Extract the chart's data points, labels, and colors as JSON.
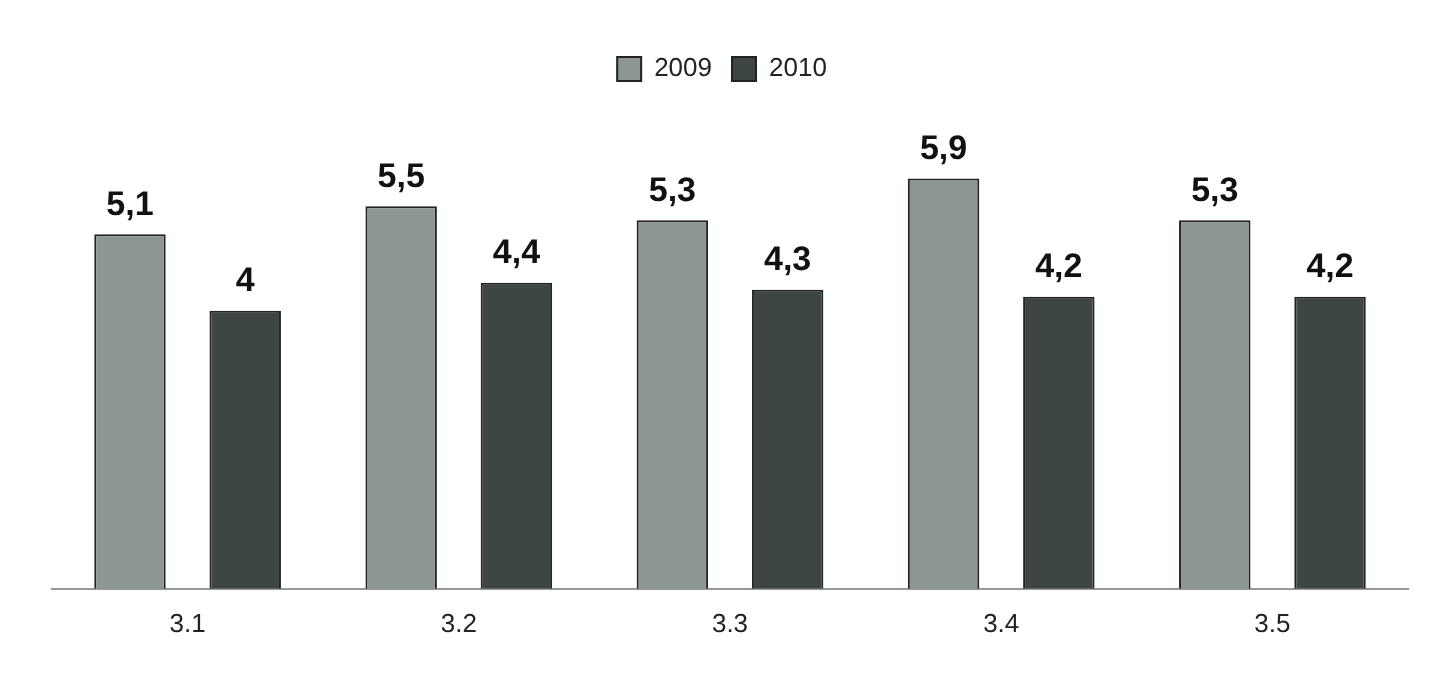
{
  "chart_data": {
    "type": "bar",
    "categories": [
      "3.1",
      "3.2",
      "3.3",
      "3.4",
      "3.5"
    ],
    "series": [
      {
        "name": "2009",
        "color": "#8c9692",
        "values": [
          5.1,
          5.5,
          5.3,
          5.9,
          5.3
        ],
        "value_labels": [
          "5,1",
          "5,5",
          "5,3",
          "5,9",
          "5,3"
        ]
      },
      {
        "name": "2010",
        "color": "#3e4644",
        "values": [
          4,
          4.4,
          4.3,
          4.2,
          4.2
        ],
        "value_labels": [
          "4",
          "4,4",
          "4,3",
          "4,2",
          "4,2"
        ]
      }
    ],
    "legend": "top",
    "grid": false
  }
}
